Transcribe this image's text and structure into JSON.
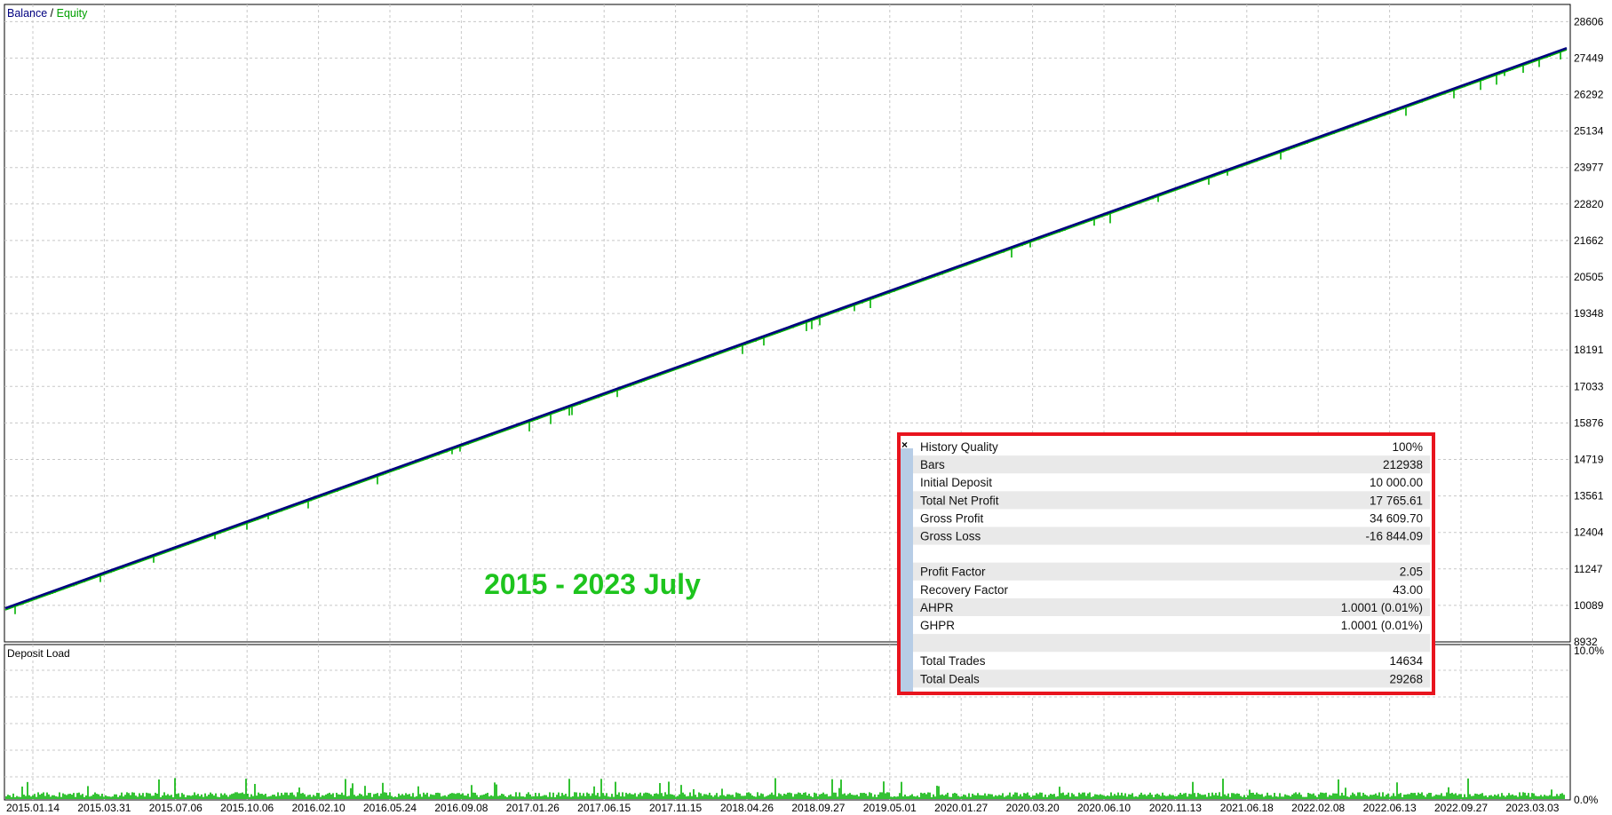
{
  "colors": {
    "balance": "#000080",
    "equity": "#00b300",
    "grid": "#c8c8c8",
    "stats_border": "#e8141e",
    "stats_band": "#e9e9e9",
    "stats_sidebar": "#b7cde6",
    "overlay_text": "#1ec41e"
  },
  "legend": {
    "balance": "Balance",
    "separator": " / ",
    "equity": "Equity"
  },
  "overlay_text": "2015 - 2023 July",
  "chart_data": [
    {
      "type": "line",
      "ylim": [
        8932,
        29150
      ],
      "y_ticks": [
        "28606",
        "27449",
        "26292",
        "25134",
        "23977",
        "22820",
        "21662",
        "20505",
        "19348",
        "18191",
        "17033",
        "15876",
        "14719",
        "13561",
        "12404",
        "11247",
        "10089",
        "8932"
      ],
      "x_ticks": [
        "2015.01.14",
        "2015.03.31",
        "2015.07.06",
        "2015.10.06",
        "2016.02.10",
        "2016.05.24",
        "2016.09.08",
        "2017.01.26",
        "2017.06.15",
        "2017.11.15",
        "2018.04.26",
        "2018.09.27",
        "2019.05.01",
        "2020.01.27",
        "2020.03.20",
        "2020.06.10",
        "2020.11.13",
        "2021.06.18",
        "2022.02.08",
        "2022.06.13",
        "2022.09.27",
        "2023.03.03"
      ],
      "series": [
        {
          "name": "Balance",
          "y": [
            10000,
            27765.61
          ]
        },
        {
          "name": "Equity",
          "min_y": 9860
        }
      ],
      "grid": true,
      "legend": "top-left"
    },
    {
      "type": "bar",
      "title": "Deposit Load",
      "y_ticks": [
        "10.0%",
        "0.0%"
      ],
      "ylim": [
        0,
        10
      ],
      "grid": true
    }
  ],
  "stats": {
    "close_symbol": "×",
    "rows": [
      {
        "label": "History Quality",
        "value": "100%"
      },
      {
        "label": "Bars",
        "value": "212938"
      },
      {
        "label": "Initial Deposit",
        "value": "10 000.00"
      },
      {
        "label": "Total Net Profit",
        "value": "17 765.61"
      },
      {
        "label": "Gross Profit",
        "value": "34 609.70"
      },
      {
        "label": "Gross Loss",
        "value": "-16 844.09"
      },
      {
        "label": "",
        "value": ""
      },
      {
        "label": "Profit Factor",
        "value": "2.05"
      },
      {
        "label": "Recovery Factor",
        "value": "43.00"
      },
      {
        "label": "AHPR",
        "value": "1.0001 (0.01%)"
      },
      {
        "label": "GHPR",
        "value": "1.0001 (0.01%)"
      },
      {
        "label": "",
        "value": ""
      },
      {
        "label": "Total Trades",
        "value": "14634"
      },
      {
        "label": "Total Deals",
        "value": "29268"
      }
    ]
  }
}
